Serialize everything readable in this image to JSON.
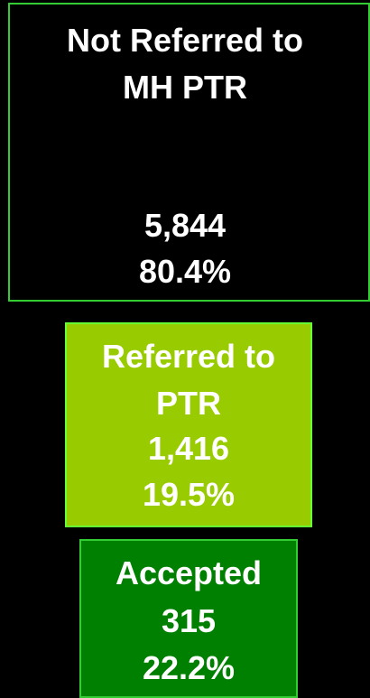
{
  "nodes": [
    {
      "label": [
        "Not Referred to",
        "MH PTR"
      ],
      "count": "5,844",
      "percent": "80.4%"
    },
    {
      "label": [
        "Referred to",
        "PTR"
      ],
      "count": "1,416",
      "percent": "19.5%"
    },
    {
      "label": [
        "Accepted"
      ],
      "count": "315",
      "percent": "22.2%"
    }
  ]
}
